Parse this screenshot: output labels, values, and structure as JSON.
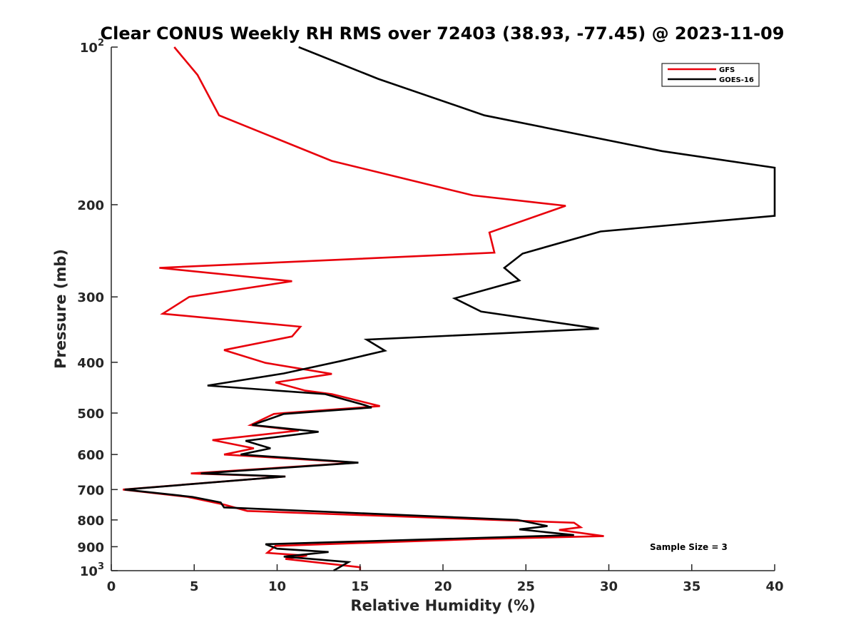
{
  "chart_data": {
    "type": "line",
    "title": "Clear CONUS Weekly RH RMS over 72403 (38.93, -77.45) @ 2023-11-09",
    "xlabel": "Relative Humidity (%)",
    "ylabel": "Pressure (mb)",
    "xlim": [
      0,
      40
    ],
    "ylim": [
      100,
      1000
    ],
    "y_scale": "log",
    "y_reversed": true,
    "x_ticks": [
      "0",
      "5",
      "10",
      "15",
      "20",
      "25",
      "30",
      "35",
      "40"
    ],
    "y_ticks": [
      {
        "value": 100,
        "base": "10",
        "exp": "2"
      },
      {
        "value": 200,
        "label": "200"
      },
      {
        "value": 300,
        "label": "300"
      },
      {
        "value": 400,
        "label": "400"
      },
      {
        "value": 500,
        "label": "500"
      },
      {
        "value": 600,
        "label": "600"
      },
      {
        "value": 700,
        "label": "700"
      },
      {
        "value": 800,
        "label": "800"
      },
      {
        "value": 900,
        "label": "900"
      },
      {
        "value": 1000,
        "base": "10",
        "exp": "3"
      }
    ],
    "grid": false,
    "legend_position": "top-right",
    "annotation": "Sample Size = 3",
    "series": [
      {
        "name": "GFS",
        "color": "#e8000b",
        "points": [
          [
            3.8,
            100
          ],
          [
            5.2,
            113
          ],
          [
            6.5,
            135
          ],
          [
            13.3,
            165
          ],
          [
            21.8,
            192
          ],
          [
            27.4,
            201
          ],
          [
            22.8,
            226
          ],
          [
            23.1,
            247
          ],
          [
            2.9,
            264
          ],
          [
            10.9,
            280
          ],
          [
            4.7,
            300
          ],
          [
            3.1,
            323
          ],
          [
            11.4,
            342
          ],
          [
            10.9,
            357
          ],
          [
            6.8,
            379
          ],
          [
            9.3,
            401
          ],
          [
            13.3,
            421
          ],
          [
            9.9,
            437
          ],
          [
            11.7,
            453
          ],
          [
            13.3,
            460
          ],
          [
            16.2,
            485
          ],
          [
            10.4,
            500
          ],
          [
            9.8,
            502
          ],
          [
            8.4,
            527
          ],
          [
            11.3,
            540
          ],
          [
            6.1,
            563
          ],
          [
            8.6,
            584
          ],
          [
            6.8,
            600
          ],
          [
            14.8,
            622
          ],
          [
            4.8,
            652
          ],
          [
            10.5,
            661
          ],
          [
            0.7,
            700
          ],
          [
            4.6,
            723
          ],
          [
            6.8,
            748
          ],
          [
            8.2,
            769
          ],
          [
            27.9,
            810
          ],
          [
            28.3,
            826
          ],
          [
            27.0,
            836
          ],
          [
            29.7,
            859
          ],
          [
            22.2,
            870
          ],
          [
            9.9,
            897
          ],
          [
            9.4,
            925
          ],
          [
            11.8,
            936
          ],
          [
            10.5,
            950
          ],
          [
            15.0,
            985
          ],
          [
            15.0,
            1000
          ]
        ]
      },
      {
        "name": "GOES-16",
        "color": "#000000",
        "points": [
          [
            11.3,
            100
          ],
          [
            16.1,
            115
          ],
          [
            22.5,
            135
          ],
          [
            33.2,
            158
          ],
          [
            40.0,
            170
          ],
          [
            40.0,
            210
          ],
          [
            29.5,
            225
          ],
          [
            24.8,
            248
          ],
          [
            23.7,
            264
          ],
          [
            24.6,
            279
          ],
          [
            20.7,
            302
          ],
          [
            22.3,
            320
          ],
          [
            29.4,
            345
          ],
          [
            15.4,
            362
          ],
          [
            16.5,
            380
          ],
          [
            13.8,
            398
          ],
          [
            10.4,
            420
          ],
          [
            5.8,
            443
          ],
          [
            12.9,
            460
          ],
          [
            15.3,
            483
          ],
          [
            15.7,
            488
          ],
          [
            10.4,
            502
          ],
          [
            8.5,
            527
          ],
          [
            12.5,
            543
          ],
          [
            8.1,
            565
          ],
          [
            9.6,
            584
          ],
          [
            7.8,
            600
          ],
          [
            14.9,
            622
          ],
          [
            5.4,
            652
          ],
          [
            10.5,
            661
          ],
          [
            0.8,
            700
          ],
          [
            4.9,
            723
          ],
          [
            6.6,
            741
          ],
          [
            6.8,
            757
          ],
          [
            24.5,
            800
          ],
          [
            26.3,
            822
          ],
          [
            24.6,
            834
          ],
          [
            27.9,
            855
          ],
          [
            9.3,
            890
          ],
          [
            10.0,
            908
          ],
          [
            13.1,
            921
          ],
          [
            10.4,
            940
          ],
          [
            14.3,
            963
          ],
          [
            13.4,
            1000
          ]
        ]
      }
    ]
  }
}
